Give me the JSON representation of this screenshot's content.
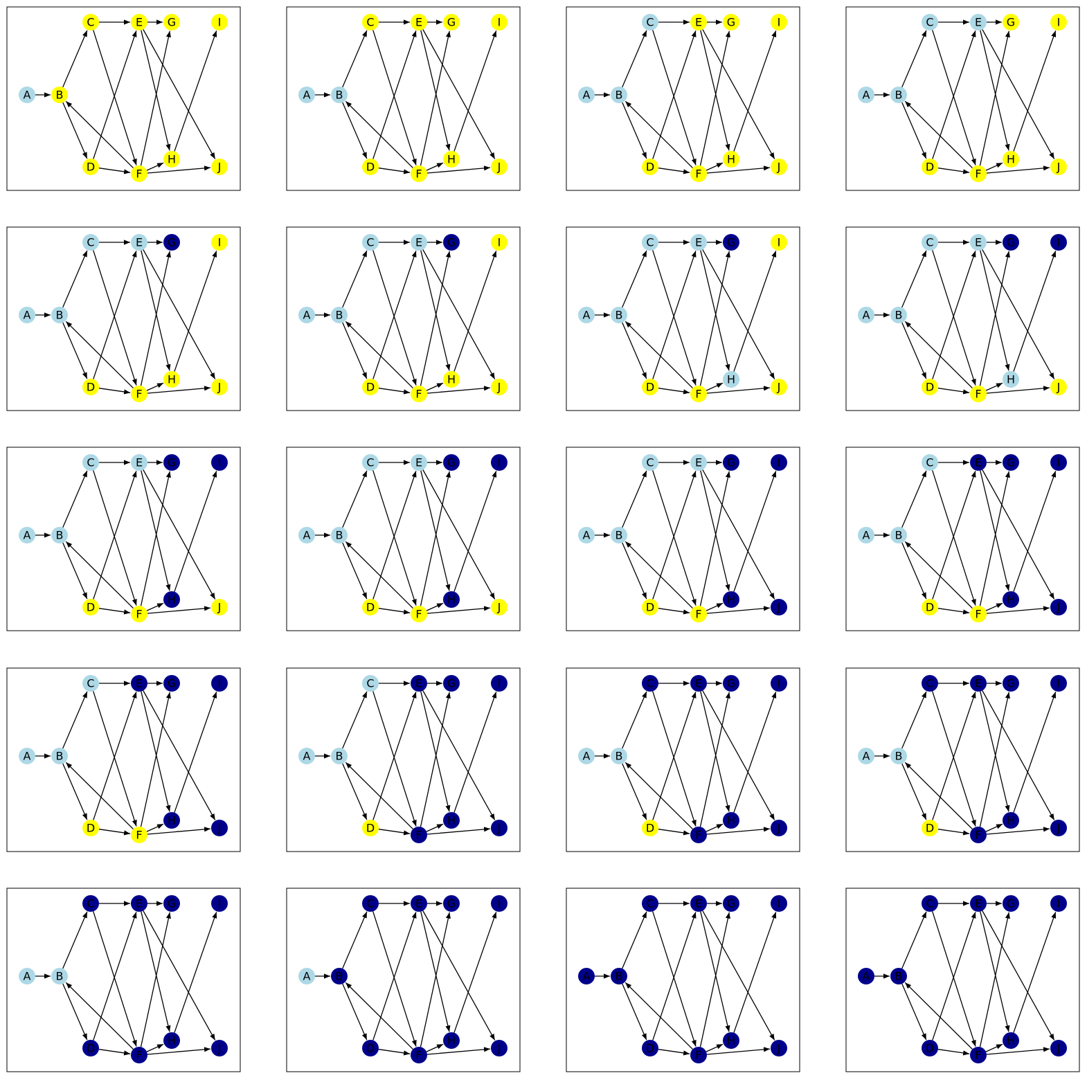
{
  "colors": {
    "light": "#add8e6",
    "yellow": "#ffff00",
    "dark": "#00008b",
    "edge": "#000000",
    "frame": "#000000"
  },
  "nodes": [
    "A",
    "B",
    "C",
    "D",
    "E",
    "F",
    "G",
    "H",
    "I",
    "J"
  ],
  "edges": [
    [
      "A",
      "B"
    ],
    [
      "B",
      "C"
    ],
    [
      "B",
      "D"
    ],
    [
      "C",
      "E"
    ],
    [
      "C",
      "F"
    ],
    [
      "D",
      "E"
    ],
    [
      "D",
      "F"
    ],
    [
      "E",
      "G"
    ],
    [
      "E",
      "H"
    ],
    [
      "E",
      "J"
    ],
    [
      "F",
      "B"
    ],
    [
      "F",
      "G"
    ],
    [
      "F",
      "H"
    ],
    [
      "F",
      "J"
    ],
    [
      "H",
      "I"
    ]
  ],
  "panels": [
    {
      "L": "A",
      "Y": "BCDEFGHIJ",
      "D": ""
    },
    {
      "L": "AB",
      "Y": "CDEFGHIJ",
      "D": ""
    },
    {
      "L": "ABC",
      "Y": "DEFGHIJ",
      "D": ""
    },
    {
      "L": "ABCE",
      "Y": "DFGHIJ",
      "D": ""
    },
    {
      "L": "ABCE",
      "Y": "DFHIJ",
      "D": "G"
    },
    {
      "L": "ABCE",
      "Y": "DFHIJ",
      "D": "G"
    },
    {
      "L": "ABCEH",
      "Y": "DFIJ",
      "D": "G"
    },
    {
      "L": "ABCEH",
      "Y": "DFJ",
      "D": "GI"
    },
    {
      "L": "ABCE",
      "Y": "DFJ",
      "D": "GHI"
    },
    {
      "L": "ABCE",
      "Y": "DFJ",
      "D": "GHI"
    },
    {
      "L": "ABCE",
      "Y": "DF",
      "D": "GHIJ"
    },
    {
      "L": "ABC",
      "Y": "DF",
      "D": "EGHIJ"
    },
    {
      "L": "ABC",
      "Y": "DF",
      "D": "EGHIJ"
    },
    {
      "L": "ABC",
      "Y": "D",
      "D": "EFGHIJ"
    },
    {
      "L": "AB",
      "Y": "D",
      "D": "CEFGHIJ"
    },
    {
      "L": "AB",
      "Y": "D",
      "D": "CEFGHIJ"
    },
    {
      "L": "AB",
      "Y": "",
      "D": "CDEFGHIJ"
    },
    {
      "L": "A",
      "Y": "",
      "D": "BCDEFGHIJ"
    },
    {
      "L": "",
      "Y": "",
      "D": "ABCDEFGHIJ"
    },
    {
      "L": "",
      "Y": "",
      "D": "ABCDEFGHIJ"
    }
  ]
}
